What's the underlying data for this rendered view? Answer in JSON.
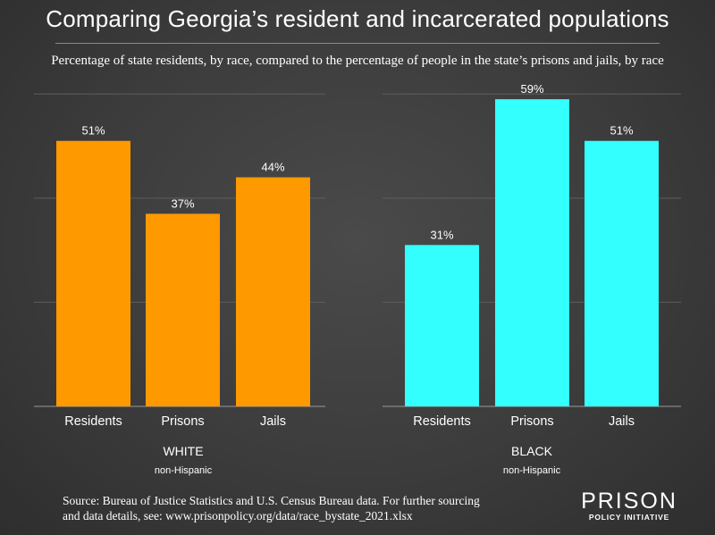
{
  "title": "Comparing Georgia’s resident and incarcerated populations",
  "subtitle": "Percentage of state residents, by race, compared to the percentage of people in the state’s prisons and jails, by race",
  "source": "Source: Bureau of Justice Statistics and U.S. Census Bureau data. For further sourcing and data details, see: www.prisonpolicy.org/data/race_bystate_2021.xlsx",
  "logo": {
    "top": "PRISON",
    "bottom": "POLICY INITIATIVE"
  },
  "colors": {
    "white_series": "#ff9900",
    "black_series": "#33ffff",
    "text": "#ffffff",
    "grid": "#5e5e5e"
  },
  "chart_data": [
    {
      "type": "bar",
      "group": "WHITE",
      "group_note": "non-Hispanic",
      "categories": [
        "Residents",
        "Prisons",
        "Jails"
      ],
      "values": [
        51,
        37,
        44
      ],
      "value_labels": [
        "51%",
        "37%",
        "44%"
      ],
      "ylim": [
        0,
        70
      ],
      "unit": "%"
    },
    {
      "type": "bar",
      "group": "BLACK",
      "group_note": "non-Hispanic",
      "categories": [
        "Residents",
        "Prisons",
        "Jails"
      ],
      "values": [
        31,
        59,
        51
      ],
      "value_labels": [
        "31%",
        "59%",
        "51%"
      ],
      "ylim": [
        0,
        70
      ],
      "unit": "%"
    }
  ]
}
